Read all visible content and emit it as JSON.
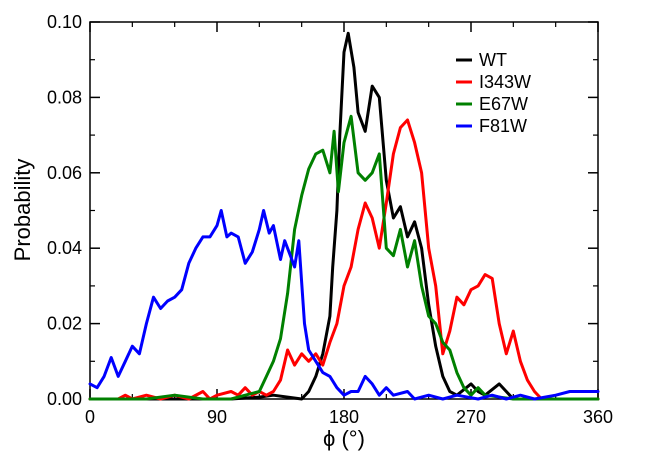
{
  "chart_data": {
    "type": "line",
    "xlabel": "ϕ (°)",
    "ylabel": "Probability",
    "xlim": [
      0,
      360
    ],
    "ylim": [
      0,
      0.1
    ],
    "x_ticks": [
      0,
      90,
      180,
      270,
      360
    ],
    "x_tick_labels": [
      "0",
      "90",
      "180",
      "270",
      "360"
    ],
    "y_ticks": [
      0,
      0.02,
      0.04,
      0.06,
      0.08,
      0.1
    ],
    "y_tick_labels": [
      "0.00",
      "0.02",
      "0.04",
      "0.06",
      "0.08",
      "0.10"
    ],
    "grid": false,
    "legend_position": "top-right",
    "series": [
      {
        "name": "WT",
        "color": "#000000",
        "points": [
          [
            0,
            0
          ],
          [
            100,
            0
          ],
          [
            120,
            0.0005
          ],
          [
            130,
            0.001
          ],
          [
            140,
            0.0005
          ],
          [
            150,
            0
          ],
          [
            155,
            0.002
          ],
          [
            160,
            0.006
          ],
          [
            165,
            0.012
          ],
          [
            170,
            0.022
          ],
          [
            172,
            0.035
          ],
          [
            175,
            0.05
          ],
          [
            177,
            0.07
          ],
          [
            180,
            0.092
          ],
          [
            183,
            0.097
          ],
          [
            187,
            0.088
          ],
          [
            190,
            0.076
          ],
          [
            195,
            0.071
          ],
          [
            200,
            0.083
          ],
          [
            205,
            0.08
          ],
          [
            210,
            0.058
          ],
          [
            215,
            0.048
          ],
          [
            220,
            0.051
          ],
          [
            225,
            0.043
          ],
          [
            230,
            0.047
          ],
          [
            235,
            0.04
          ],
          [
            240,
            0.025
          ],
          [
            245,
            0.014
          ],
          [
            250,
            0.006
          ],
          [
            255,
            0.002
          ],
          [
            260,
            0.001
          ],
          [
            270,
            0.004
          ],
          [
            275,
            0.002
          ],
          [
            280,
            0.001
          ],
          [
            290,
            0.004
          ],
          [
            295,
            0.002
          ],
          [
            300,
            0
          ],
          [
            360,
            0
          ]
        ]
      },
      {
        "name": "I343W",
        "color": "#ff0000",
        "points": [
          [
            0,
            0
          ],
          [
            20,
            0
          ],
          [
            25,
            0.001
          ],
          [
            30,
            0
          ],
          [
            40,
            0.001
          ],
          [
            50,
            0
          ],
          [
            60,
            0.001
          ],
          [
            70,
            0
          ],
          [
            80,
            0.002
          ],
          [
            85,
            0
          ],
          [
            90,
            0.001
          ],
          [
            100,
            0.002
          ],
          [
            105,
            0.001
          ],
          [
            110,
            0.003
          ],
          [
            115,
            0.001
          ],
          [
            120,
            0.002
          ],
          [
            125,
            0.001
          ],
          [
            130,
            0.002
          ],
          [
            135,
            0.005
          ],
          [
            140,
            0.013
          ],
          [
            145,
            0.009
          ],
          [
            150,
            0.012
          ],
          [
            155,
            0.01
          ],
          [
            160,
            0.012
          ],
          [
            165,
            0.009
          ],
          [
            170,
            0.015
          ],
          [
            175,
            0.02
          ],
          [
            180,
            0.03
          ],
          [
            185,
            0.035
          ],
          [
            190,
            0.045
          ],
          [
            195,
            0.052
          ],
          [
            200,
            0.048
          ],
          [
            205,
            0.04
          ],
          [
            210,
            0.052
          ],
          [
            215,
            0.065
          ],
          [
            220,
            0.072
          ],
          [
            225,
            0.074
          ],
          [
            230,
            0.068
          ],
          [
            235,
            0.06
          ],
          [
            240,
            0.04
          ],
          [
            245,
            0.03
          ],
          [
            250,
            0.012
          ],
          [
            255,
            0.018
          ],
          [
            260,
            0.027
          ],
          [
            265,
            0.025
          ],
          [
            270,
            0.029
          ],
          [
            275,
            0.03
          ],
          [
            280,
            0.033
          ],
          [
            285,
            0.032
          ],
          [
            290,
            0.02
          ],
          [
            295,
            0.012
          ],
          [
            300,
            0.018
          ],
          [
            305,
            0.01
          ],
          [
            310,
            0.005
          ],
          [
            315,
            0.002
          ],
          [
            320,
            0
          ],
          [
            360,
            0
          ]
        ]
      },
      {
        "name": "E67W",
        "color": "#008000",
        "points": [
          [
            0,
            0
          ],
          [
            20,
            0
          ],
          [
            40,
            0
          ],
          [
            60,
            0.001
          ],
          [
            80,
            0
          ],
          [
            100,
            0
          ],
          [
            110,
            0.001
          ],
          [
            120,
            0.002
          ],
          [
            125,
            0.006
          ],
          [
            130,
            0.01
          ],
          [
            135,
            0.016
          ],
          [
            140,
            0.028
          ],
          [
            145,
            0.045
          ],
          [
            150,
            0.054
          ],
          [
            155,
            0.061
          ],
          [
            160,
            0.065
          ],
          [
            165,
            0.066
          ],
          [
            170,
            0.06
          ],
          [
            173,
            0.071
          ],
          [
            176,
            0.055
          ],
          [
            180,
            0.068
          ],
          [
            185,
            0.075
          ],
          [
            190,
            0.06
          ],
          [
            195,
            0.058
          ],
          [
            200,
            0.06
          ],
          [
            205,
            0.065
          ],
          [
            210,
            0.04
          ],
          [
            215,
            0.038
          ],
          [
            220,
            0.045
          ],
          [
            225,
            0.035
          ],
          [
            230,
            0.042
          ],
          [
            235,
            0.03
          ],
          [
            240,
            0.022
          ],
          [
            245,
            0.02
          ],
          [
            250,
            0.015
          ],
          [
            255,
            0.013
          ],
          [
            260,
            0.007
          ],
          [
            265,
            0.003
          ],
          [
            270,
            0.001
          ],
          [
            275,
            0.003
          ],
          [
            280,
            0.001
          ],
          [
            300,
            0
          ],
          [
            360,
            0
          ]
        ]
      },
      {
        "name": "F81W",
        "color": "#0000ff",
        "points": [
          [
            0,
            0.004
          ],
          [
            5,
            0.003
          ],
          [
            10,
            0.006
          ],
          [
            15,
            0.011
          ],
          [
            20,
            0.006
          ],
          [
            25,
            0.01
          ],
          [
            30,
            0.014
          ],
          [
            35,
            0.012
          ],
          [
            40,
            0.02
          ],
          [
            45,
            0.027
          ],
          [
            50,
            0.024
          ],
          [
            55,
            0.026
          ],
          [
            60,
            0.027
          ],
          [
            65,
            0.029
          ],
          [
            70,
            0.036
          ],
          [
            75,
            0.04
          ],
          [
            80,
            0.043
          ],
          [
            85,
            0.043
          ],
          [
            90,
            0.046
          ],
          [
            93,
            0.05
          ],
          [
            97,
            0.043
          ],
          [
            100,
            0.044
          ],
          [
            105,
            0.043
          ],
          [
            110,
            0.036
          ],
          [
            115,
            0.039
          ],
          [
            120,
            0.045
          ],
          [
            123,
            0.05
          ],
          [
            127,
            0.044
          ],
          [
            130,
            0.046
          ],
          [
            135,
            0.037
          ],
          [
            138,
            0.042
          ],
          [
            142,
            0.038
          ],
          [
            145,
            0.035
          ],
          [
            148,
            0.042
          ],
          [
            152,
            0.02
          ],
          [
            155,
            0.013
          ],
          [
            160,
            0.01
          ],
          [
            165,
            0.007
          ],
          [
            170,
            0.006
          ],
          [
            175,
            0.003
          ],
          [
            180,
            0.001
          ],
          [
            185,
            0.002
          ],
          [
            190,
            0.002
          ],
          [
            195,
            0.006
          ],
          [
            200,
            0.004
          ],
          [
            205,
            0.001
          ],
          [
            210,
            0.003
          ],
          [
            215,
            0.001
          ],
          [
            225,
            0.002
          ],
          [
            230,
            0
          ],
          [
            240,
            0.001
          ],
          [
            250,
            0
          ],
          [
            260,
            0.001
          ],
          [
            275,
            0
          ],
          [
            285,
            0.001
          ],
          [
            295,
            0
          ],
          [
            305,
            0.001
          ],
          [
            315,
            0
          ],
          [
            330,
            0.001
          ],
          [
            340,
            0.002
          ],
          [
            350,
            0.002
          ],
          [
            360,
            0.002
          ]
        ]
      }
    ]
  }
}
